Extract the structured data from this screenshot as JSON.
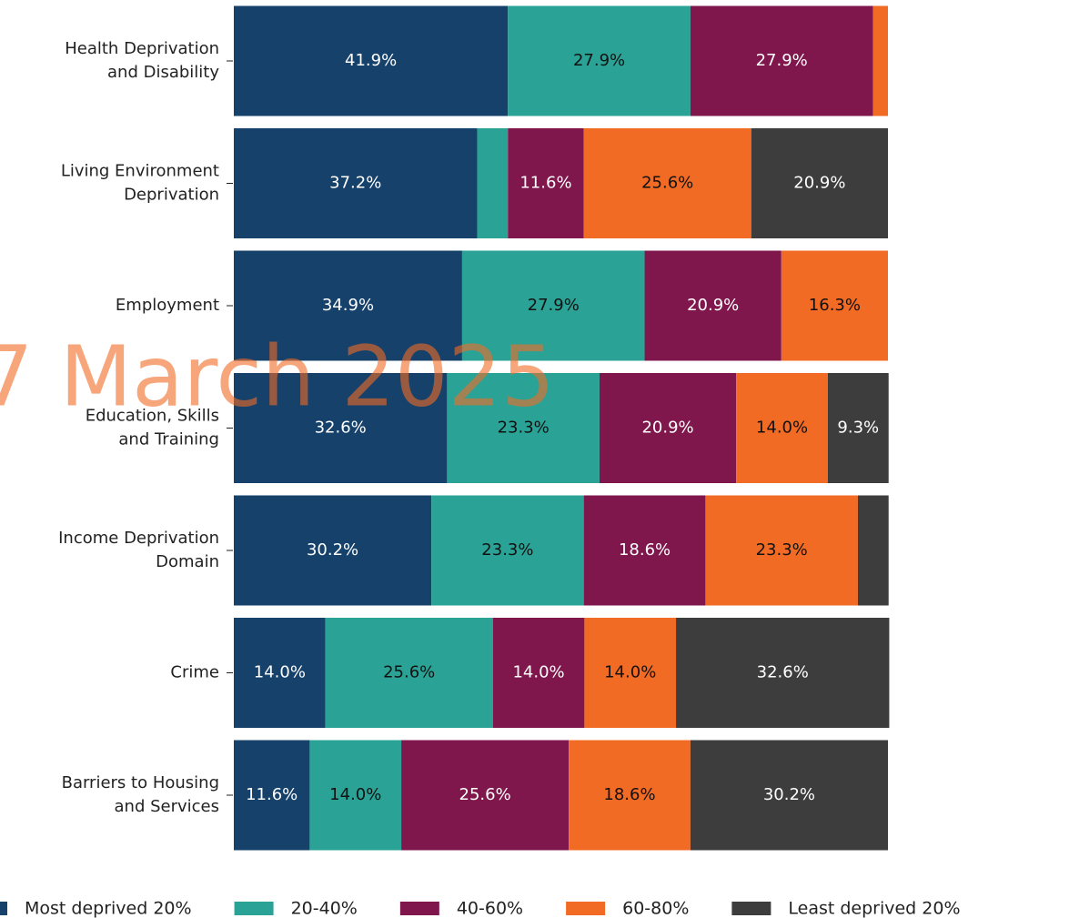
{
  "chart_data": {
    "type": "bar",
    "orientation": "horizontal",
    "stacked": true,
    "categories": [
      "Health Deprivation\nand Disability",
      "Living Environment\nDeprivation",
      "Employment",
      "Education, Skills\nand Training",
      "Income Deprivation\nDomain",
      "Crime",
      "Barriers to Housing\nand Services"
    ],
    "series": [
      {
        "name": "Most deprived 20%",
        "color": "#16416b",
        "values": [
          41.9,
          37.2,
          34.9,
          32.6,
          30.2,
          14.0,
          11.6
        ],
        "value_labels": [
          "41.9%",
          "37.2%",
          "34.9%",
          "32.6%",
          "30.2%",
          "14.0%",
          "11.6%"
        ]
      },
      {
        "name": "20-40%",
        "color": "#2aa396",
        "values": [
          27.9,
          4.7,
          27.9,
          23.3,
          23.3,
          25.6,
          14.0
        ],
        "value_labels": [
          "27.9%",
          null,
          "27.9%",
          "23.3%",
          "23.3%",
          "25.6%",
          "14.0%"
        ]
      },
      {
        "name": "40-60%",
        "color": "#7f164c",
        "values": [
          27.9,
          11.6,
          20.9,
          20.9,
          18.6,
          14.0,
          25.6
        ],
        "value_labels": [
          "27.9%",
          "11.6%",
          "20.9%",
          "20.9%",
          "18.6%",
          "14.0%",
          "25.6%"
        ]
      },
      {
        "name": "60-80%",
        "color": "#f26b25",
        "values": [
          2.3,
          25.6,
          16.3,
          14.0,
          23.3,
          14.0,
          18.6
        ],
        "value_labels": [
          null,
          "25.6%",
          "16.3%",
          "14.0%",
          "23.3%",
          "14.0%",
          "18.6%"
        ]
      },
      {
        "name": "Least deprived 20%",
        "color": "#3d3d3d",
        "values": [
          0,
          20.9,
          0,
          9.3,
          4.7,
          32.6,
          30.2
        ],
        "value_labels": [
          null,
          "20.9%",
          null,
          "9.3%",
          null,
          "32.6%",
          "30.2%"
        ]
      }
    ],
    "label_colors": [
      "#ffffff",
      "#111111",
      "#ffffff",
      "#111111",
      "#ffffff"
    ],
    "xlim": [
      0,
      100
    ],
    "legend": "bottom",
    "annotations": [
      {
        "text": "7 March 2025"
      }
    ]
  }
}
